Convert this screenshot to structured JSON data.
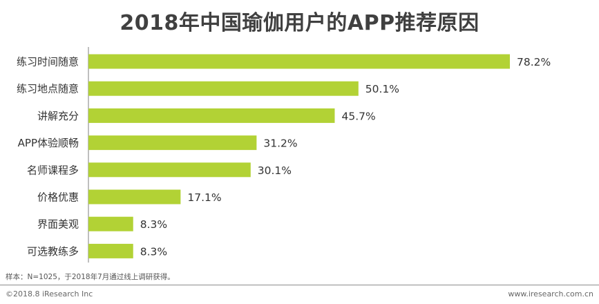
{
  "title": "2018年中国瑜伽用户的APP推荐原因",
  "chart_data": {
    "type": "bar",
    "orientation": "horizontal",
    "title": "2018年中国瑜伽用户的APP推荐原因",
    "categories": [
      "练习时间随意",
      "练习地点随意",
      "讲解充分",
      "APP体验顺畅",
      "名师课程多",
      "价格优惠",
      "界面美观",
      "可选教练多"
    ],
    "values": [
      78.2,
      50.1,
      45.7,
      31.2,
      30.1,
      17.1,
      8.3,
      8.3
    ],
    "value_labels": [
      "78.2%",
      "50.1%",
      "45.7%",
      "31.2%",
      "30.1%",
      "17.1%",
      "8.3%",
      "8.3%"
    ],
    "unit": "%",
    "xlim": [
      0,
      100
    ],
    "grid": false,
    "bar_color": "#b2d235"
  },
  "footnote": "样本：N=1025，于2018年7月通过线上调研获得。",
  "copyright": "©2018.8 iResearch Inc",
  "website": "www.iresearch.com.cn"
}
